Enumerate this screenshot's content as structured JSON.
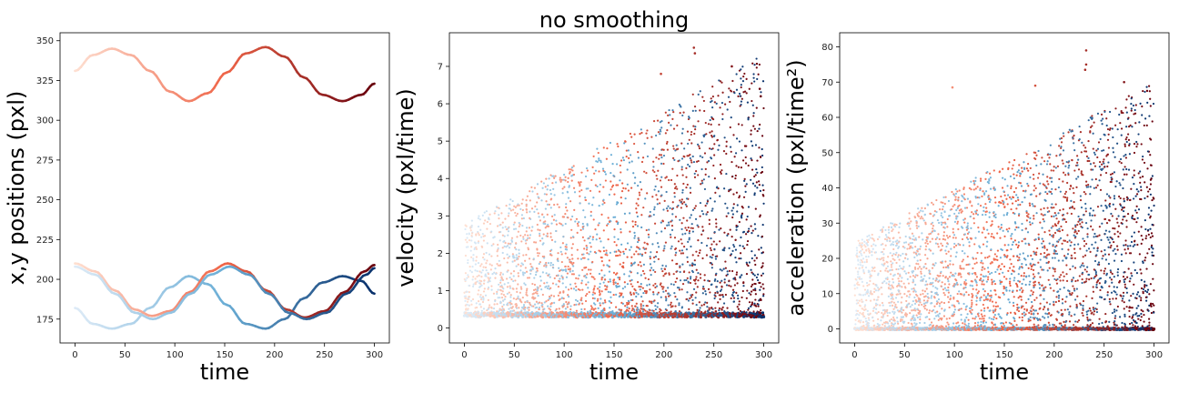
{
  "figure": {
    "suptitle": "no smoothing"
  },
  "colors": {
    "reds_light": "#fee0d2",
    "reds_mid": "#ef6548",
    "reds_dark": "#67000d",
    "blues_light": "#deebf7",
    "blues_mid": "#6baed6",
    "blues_dark": "#08306b"
  },
  "chart_data": [
    {
      "type": "line",
      "xlabel": "time",
      "ylabel": "x,y positions (pxl)",
      "xlim": [
        -15,
        315
      ],
      "ylim": [
        160,
        355
      ],
      "xticks": [
        0,
        50,
        100,
        150,
        200,
        250,
        300
      ],
      "yticks": [
        175,
        200,
        225,
        250,
        275,
        300,
        325,
        350
      ],
      "colormap_note": "time-colored lines, Reds and Blues",
      "series": [
        {
          "colormap": "Reds",
          "points": [
            [
              0,
              331
            ],
            [
              18,
              341
            ],
            [
              37,
              345
            ],
            [
              56,
              341
            ],
            [
              75,
              331
            ],
            [
              95,
              318
            ],
            [
              114,
              312
            ],
            [
              133,
              317
            ],
            [
              152,
              330
            ],
            [
              171,
              342
            ],
            [
              191,
              346
            ],
            [
              210,
              340
            ],
            [
              229,
              327
            ],
            [
              248,
              316
            ],
            [
              268,
              312
            ],
            [
              287,
              316
            ],
            [
              300,
              323
            ]
          ]
        },
        {
          "colormap": "Blues",
          "points": [
            [
              0,
              182
            ],
            [
              18,
              172
            ],
            [
              37,
              169
            ],
            [
              56,
              172
            ],
            [
              75,
              182
            ],
            [
              95,
              195
            ],
            [
              114,
              202
            ],
            [
              133,
              197
            ],
            [
              152,
              184
            ],
            [
              171,
              172
            ],
            [
              191,
              169
            ],
            [
              210,
              175
            ],
            [
              229,
              188
            ],
            [
              248,
              198
            ],
            [
              268,
              202
            ],
            [
              287,
              199
            ],
            [
              300,
              191
            ]
          ]
        },
        {
          "colormap": "Reds",
          "points": [
            [
              0,
              210
            ],
            [
              20,
              205
            ],
            [
              40,
              193
            ],
            [
              60,
              181
            ],
            [
              77,
              177
            ],
            [
              95,
              180
            ],
            [
              115,
              192
            ],
            [
              135,
              205
            ],
            [
              153,
              210
            ],
            [
              172,
              205
            ],
            [
              192,
              193
            ],
            [
              212,
              181
            ],
            [
              230,
              176
            ],
            [
              250,
              180
            ],
            [
              270,
              192
            ],
            [
              290,
              205
            ],
            [
              300,
              209
            ]
          ]
        },
        {
          "colormap": "Blues",
          "points": [
            [
              0,
              208
            ],
            [
              20,
              203
            ],
            [
              40,
              191
            ],
            [
              60,
              179
            ],
            [
              78,
              175
            ],
            [
              96,
              179
            ],
            [
              116,
              191
            ],
            [
              136,
              203
            ],
            [
              155,
              208
            ],
            [
              174,
              203
            ],
            [
              194,
              191
            ],
            [
              214,
              179
            ],
            [
              232,
              175
            ],
            [
              252,
              179
            ],
            [
              272,
              191
            ],
            [
              292,
              203
            ],
            [
              300,
              207
            ]
          ]
        }
      ]
    },
    {
      "type": "scatter",
      "xlabel": "time",
      "ylabel": "velocity (pxl/time)",
      "xlim": [
        -15,
        315
      ],
      "ylim": [
        -0.4,
        7.9
      ],
      "xticks": [
        0,
        50,
        100,
        150,
        200,
        250,
        300
      ],
      "yticks": [
        0,
        1,
        2,
        3,
        4,
        5,
        6,
        7
      ],
      "colormap_note": "points colored by time, Reds and Blues; dense band near 0.35 with sparse scatter up to about 7.5",
      "notable_points": [
        [
          230,
          7.5
        ],
        [
          231,
          7.35
        ],
        [
          268,
          7.0
        ],
        [
          197,
          6.8
        ],
        [
          296,
          6.4
        ],
        [
          297,
          6.2
        ]
      ]
    },
    {
      "type": "scatter",
      "xlabel": "time",
      "ylabel": "acceleration (pxl/time²)",
      "xlim": [
        -15,
        315
      ],
      "ylim": [
        -4,
        84
      ],
      "xticks": [
        0,
        50,
        100,
        150,
        200,
        250,
        300
      ],
      "yticks": [
        0,
        10,
        20,
        30,
        40,
        50,
        60,
        70,
        80
      ],
      "colormap_note": "points colored by time, Reds and Blues; dense band at 0 with sparse scatter up to about 79",
      "notable_points": [
        [
          232,
          79
        ],
        [
          232,
          75
        ],
        [
          231,
          73.5
        ],
        [
          270,
          70
        ],
        [
          181,
          69
        ],
        [
          98,
          68.5
        ]
      ]
    }
  ]
}
